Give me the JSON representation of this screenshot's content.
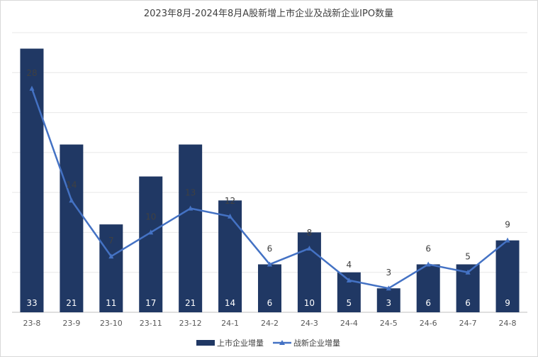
{
  "chart_data": {
    "type": "bar",
    "title": "2023年8月-2024年8月A股新增上市企业及战新企业IPO数量",
    "xlabel": "",
    "ylabel": "",
    "categories": [
      "23-8",
      "23-9",
      "23-10",
      "23-11",
      "23-12",
      "24-1",
      "24-2",
      "24-3",
      "24-4",
      "24-5",
      "24-6",
      "24-7",
      "24-8"
    ],
    "series": [
      {
        "name": "上市企业增量",
        "type": "bar",
        "color": "#203864",
        "values": [
          33,
          21,
          11,
          17,
          21,
          14,
          6,
          10,
          5,
          3,
          6,
          6,
          9
        ]
      },
      {
        "name": "战新企业增量",
        "type": "line",
        "marker": "triangle",
        "color": "#4472C4",
        "values": [
          28,
          14,
          7,
          10,
          13,
          12,
          6,
          8,
          4,
          3,
          6,
          5,
          9
        ]
      }
    ],
    "ylim": [
      0,
      35
    ],
    "grid": true,
    "legend_position": "bottom"
  }
}
